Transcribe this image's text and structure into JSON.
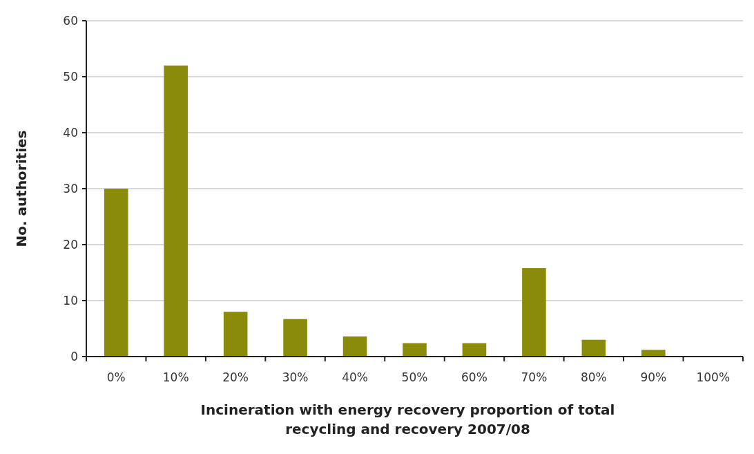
{
  "chart_data": {
    "type": "bar",
    "xlabel": "Incineration with energy recovery proportion of total recycling and recovery 2007/08",
    "ylabel": "No. authorities",
    "categories": [
      "0%",
      "10%",
      "20%",
      "30%",
      "40%",
      "50%",
      "60%",
      "70%",
      "80%",
      "90%",
      "100%"
    ],
    "values": [
      30,
      52,
      8,
      6.7,
      3.6,
      2.4,
      2.4,
      15.8,
      3,
      1.2,
      0
    ],
    "color": "#8b8b0b",
    "ylim": [
      0,
      60
    ],
    "yticks": [
      0,
      10,
      20,
      30,
      40,
      50,
      60
    ],
    "grid": "y"
  }
}
